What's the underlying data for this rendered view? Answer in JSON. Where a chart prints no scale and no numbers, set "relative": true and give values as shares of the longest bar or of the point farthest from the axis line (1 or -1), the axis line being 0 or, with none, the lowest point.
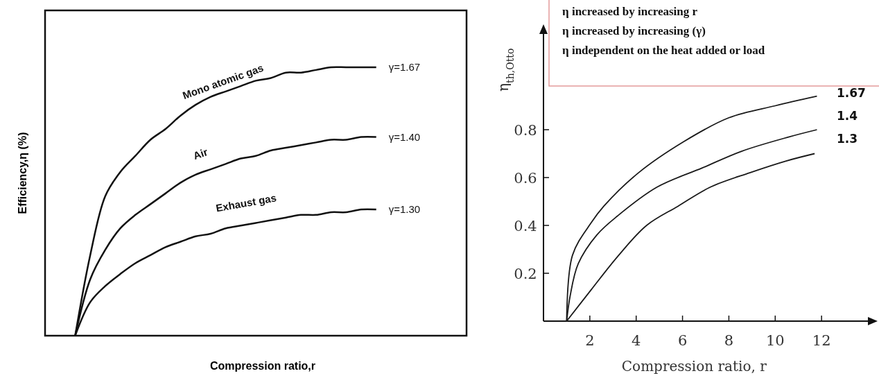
{
  "chart_data": [
    {
      "type": "line",
      "relative": true,
      "xlabel": "Compression ratio,r",
      "ylabel": "Efficiency,η (%)",
      "categories": [
        null,
        null,
        null,
        null,
        null,
        null,
        null,
        null,
        null,
        null,
        null,
        null,
        null,
        null,
        null,
        null,
        null,
        null,
        null,
        null,
        null,
        null,
        null,
        null,
        null,
        null,
        null,
        null,
        null
      ],
      "series": [
        {
          "name": "Mono atomic gas",
          "color": "#111111",
          "values": [
            null,
            null,
            0,
            0.3,
            0.52,
            0.61,
            0.67,
            0.73,
            0.77,
            0.82,
            0.86,
            0.89,
            0.91,
            0.93,
            0.95,
            0.96,
            0.98,
            0.98,
            0.99,
            1,
            1,
            1,
            1,
            null,
            null,
            null,
            null,
            null,
            null
          ]
        },
        {
          "name": "Air",
          "color": "#111111",
          "values": [
            null,
            null,
            0,
            0.21,
            0.32,
            0.4,
            0.45,
            0.49,
            0.53,
            0.57,
            0.6,
            0.62,
            0.64,
            0.66,
            0.67,
            0.69,
            0.7,
            0.71,
            0.72,
            0.73,
            0.73,
            0.74,
            0.74,
            null,
            null,
            null,
            null,
            null,
            null
          ]
        },
        {
          "name": "Exhaust gas",
          "color": "#111111",
          "values": [
            null,
            null,
            0,
            0.125,
            0.185,
            0.23,
            0.27,
            0.3,
            0.33,
            0.35,
            0.37,
            0.38,
            0.4,
            0.41,
            0.42,
            0.43,
            0.44,
            0.45,
            0.45,
            0.46,
            0.46,
            0.47,
            0.47,
            null,
            null,
            null,
            null,
            null,
            null
          ]
        }
      ],
      "annotations": [
        "γ=1.67",
        "γ=1.40",
        "γ=1.30"
      ]
    },
    {
      "type": "line",
      "xlabel": "Compression ratio, r",
      "ylabel": "η$_{th,Otto}$",
      "xlim": [
        0,
        14
      ],
      "ylim": [
        0,
        1.2
      ],
      "xticks": [
        2,
        4,
        6,
        8,
        10,
        12
      ],
      "yticks": [
        0.2,
        0.4,
        0.6,
        0.8
      ],
      "series": [
        {
          "name": "1.67",
          "color": "#1a1a1a",
          "x": [
            1,
            1.25,
            2.05,
            2.6,
            4.1,
            6.05,
            8,
            10,
            11.8
          ],
          "values": [
            0,
            0.275,
            0.41,
            0.48,
            0.62,
            0.75,
            0.85,
            0.9,
            0.94
          ]
        },
        {
          "name": "1.4",
          "color": "#1a1a1a",
          "x": [
            1,
            1.15,
            1.5,
            2.3,
            3.2,
            4.9,
            6.85,
            8.55,
            10.6,
            11.8
          ],
          "values": [
            0,
            0.105,
            0.24,
            0.36,
            0.44,
            0.56,
            0.64,
            0.71,
            0.77,
            0.8
          ]
        },
        {
          "name": "1.3",
          "color": "#1a1a1a",
          "x": [
            1,
            2.05,
            3.2,
            4.45,
            5.8,
            7.2,
            8.9,
            10.5,
            11.7
          ],
          "values": [
            0,
            0.13,
            0.27,
            0.4,
            0.48,
            0.56,
            0.62,
            0.67,
            0.7
          ]
        }
      ],
      "annotations": [
        "η increased by increasing r",
        "η increased by increasing (γ)",
        "η independent on the heat added or load"
      ]
    }
  ]
}
